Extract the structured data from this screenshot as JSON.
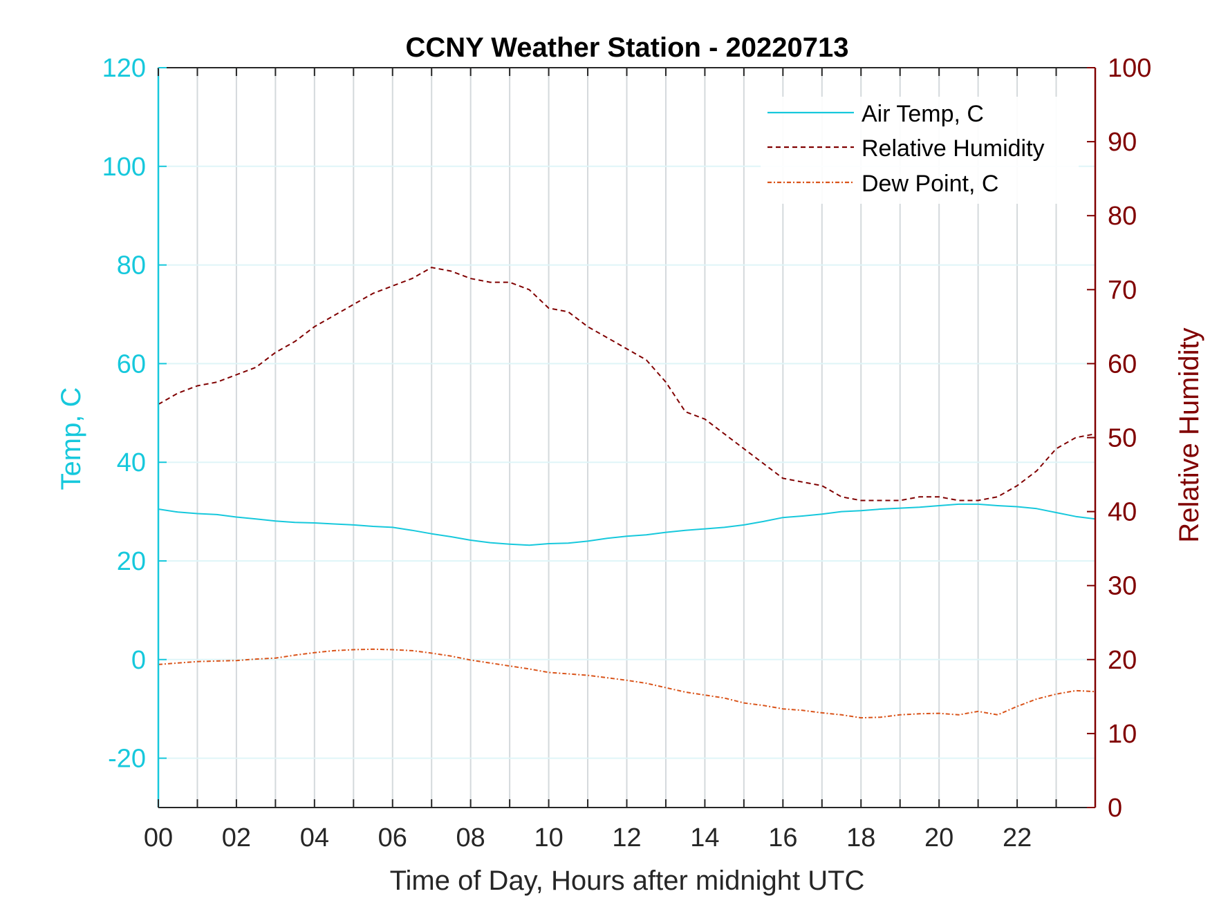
{
  "chart_data": {
    "type": "line",
    "title": "CCNY Weather Station - 20220713",
    "xlabel": "Time of Day, Hours after midnight UTC",
    "ylabel_left": "Temp, C",
    "ylabel_right": "Relative Humidity",
    "xlim": [
      0,
      24
    ],
    "ylim_left": [
      -30,
      120
    ],
    "ylim_right": [
      0,
      100
    ],
    "x_ticks": [
      0,
      2,
      4,
      6,
      8,
      10,
      12,
      14,
      16,
      18,
      20,
      22
    ],
    "x_tick_labels": [
      "00",
      "02",
      "04",
      "06",
      "08",
      "10",
      "12",
      "14",
      "16",
      "18",
      "20",
      "22"
    ],
    "y_left_ticks": [
      -20,
      0,
      20,
      40,
      60,
      80,
      100,
      120
    ],
    "y_left_tick_labels": [
      "-20",
      "0",
      "20",
      "40",
      "60",
      "80",
      "100",
      "120"
    ],
    "y_right_ticks": [
      0,
      10,
      20,
      30,
      40,
      50,
      60,
      70,
      80,
      90,
      100
    ],
    "y_right_tick_labels": [
      "0",
      "10",
      "20",
      "30",
      "40",
      "50",
      "60",
      "70",
      "80",
      "90",
      "100"
    ],
    "grid": true,
    "legend_position": "top-right",
    "colors": {
      "air_temp": "#16c8dc",
      "humidity": "#800000",
      "dew_point": "#d95319",
      "axis_left": "#16c8dc",
      "axis_right": "#800000",
      "grid_vertical": "#d4d9dc",
      "grid_horizontal": "#dff5f8"
    },
    "series": [
      {
        "name": "Air Temp, C",
        "axis": "left",
        "style": "solid",
        "x": [
          0,
          0.5,
          1,
          1.5,
          2,
          2.5,
          3,
          3.5,
          4,
          4.5,
          5,
          5.5,
          6,
          6.5,
          7,
          7.5,
          8,
          8.5,
          9,
          9.5,
          10,
          10.5,
          11,
          11.5,
          12,
          12.5,
          13,
          13.5,
          14,
          14.5,
          15,
          15.5,
          16,
          16.5,
          17,
          17.5,
          18,
          18.5,
          19,
          19.5,
          20,
          20.5,
          21,
          21.5,
          22,
          22.5,
          23,
          23.5,
          24
        ],
        "y": [
          30.5,
          29.9,
          29.6,
          29.4,
          28.9,
          28.5,
          28.1,
          27.8,
          27.7,
          27.5,
          27.3,
          27.0,
          26.8,
          26.2,
          25.5,
          24.9,
          24.2,
          23.7,
          23.4,
          23.2,
          23.5,
          23.6,
          24.0,
          24.6,
          25.0,
          25.3,
          25.8,
          26.2,
          26.5,
          26.8,
          27.3,
          28.0,
          28.8,
          29.1,
          29.5,
          30.0,
          30.2,
          30.5,
          30.7,
          30.9,
          31.2,
          31.5,
          31.5,
          31.2,
          31.0,
          30.6,
          29.8,
          29.0,
          28.5
        ]
      },
      {
        "name": "Relative Humidity",
        "axis": "right",
        "style": "dashed",
        "x": [
          0,
          0.5,
          1,
          1.5,
          2,
          2.5,
          3,
          3.5,
          4,
          4.5,
          5,
          5.5,
          6,
          6.5,
          7,
          7.5,
          8,
          8.5,
          9,
          9.5,
          10,
          10.5,
          11,
          11.5,
          12,
          12.5,
          13,
          13.5,
          14,
          14.5,
          15,
          15.5,
          16,
          16.5,
          17,
          17.5,
          18,
          18.5,
          19,
          19.5,
          20,
          20.5,
          21,
          21.5,
          22,
          22.5,
          23,
          23.5,
          24
        ],
        "y": [
          54.5,
          56,
          57,
          57.5,
          58.5,
          59.5,
          61.5,
          63,
          65,
          66.5,
          68,
          69.5,
          70.5,
          71.5,
          73,
          72.5,
          71.5,
          71,
          71,
          70,
          67.5,
          67,
          65,
          63.5,
          62,
          60.5,
          57.5,
          53.5,
          52.5,
          50.5,
          48.5,
          46.5,
          44.5,
          44,
          43.5,
          42,
          41.5,
          41.5,
          41.5,
          42,
          42,
          41.5,
          41.5,
          42,
          43.5,
          45.5,
          48.5,
          50,
          50.5
        ]
      },
      {
        "name": "Dew Point, C",
        "axis": "left",
        "style": "dashdot",
        "x": [
          0,
          0.5,
          1,
          1.5,
          2,
          2.5,
          3,
          3.5,
          4,
          4.5,
          5,
          5.5,
          6,
          6.5,
          7,
          7.5,
          8,
          8.5,
          9,
          9.5,
          10,
          10.5,
          11,
          11.5,
          12,
          12.5,
          13,
          13.5,
          14,
          14.5,
          15,
          15.5,
          16,
          16.5,
          17,
          17.5,
          18,
          18.5,
          19,
          19.5,
          20,
          20.5,
          21,
          21.5,
          22,
          22.5,
          23,
          23.5,
          24
        ],
        "y": [
          -1,
          -0.7,
          -0.4,
          -0.3,
          -0.2,
          0.1,
          0.3,
          0.9,
          1.4,
          1.8,
          2.0,
          2.1,
          2.0,
          1.8,
          1.3,
          0.7,
          -0.1,
          -0.7,
          -1.3,
          -1.9,
          -2.6,
          -2.9,
          -3.2,
          -3.7,
          -4.2,
          -4.8,
          -5.7,
          -6.6,
          -7.2,
          -7.8,
          -8.8,
          -9.3,
          -10.0,
          -10.3,
          -10.8,
          -11.2,
          -11.8,
          -11.7,
          -11.2,
          -11.0,
          -10.9,
          -11.2,
          -10.5,
          -11.2,
          -9.5,
          -8.0,
          -7.0,
          -6.3,
          -6.5
        ]
      }
    ]
  }
}
